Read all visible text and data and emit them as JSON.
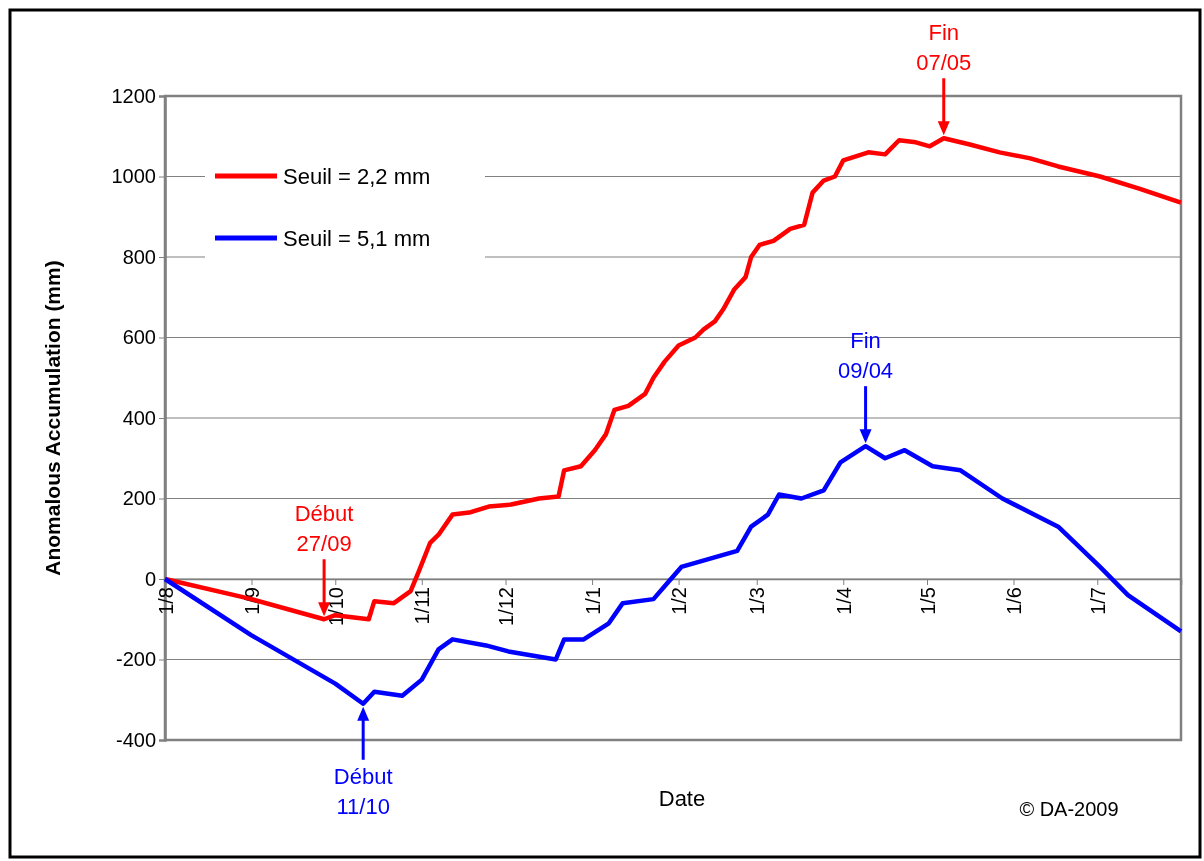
{
  "chart_data": {
    "type": "line",
    "xlabel": "Date",
    "ylabel": "Anomalous Accumulation (mm)",
    "xlim": [
      "2008-08-01",
      "2009-07-31"
    ],
    "xticks": [
      {
        "value": "2008-08-01",
        "label": "1/8"
      },
      {
        "value": "2008-09-01",
        "label": "1/9"
      },
      {
        "value": "2008-10-01",
        "label": "1/10"
      },
      {
        "value": "2008-11-01",
        "label": "1/11"
      },
      {
        "value": "2008-12-01",
        "label": "1/12"
      },
      {
        "value": "2009-01-01",
        "label": "1/1"
      },
      {
        "value": "2009-02-01",
        "label": "1/2"
      },
      {
        "value": "2009-03-01",
        "label": "1/3"
      },
      {
        "value": "2009-04-01",
        "label": "1/4"
      },
      {
        "value": "2009-05-01",
        "label": "1/5"
      },
      {
        "value": "2009-06-01",
        "label": "1/6"
      },
      {
        "value": "2009-07-01",
        "label": "1/7"
      }
    ],
    "ylim": [
      -400,
      1200
    ],
    "yticks": [
      -400,
      -200,
      0,
      200,
      400,
      600,
      800,
      1000,
      1200
    ],
    "grid": "y",
    "legend": "top left",
    "line_style": "solid",
    "marker": "none",
    "series": [
      {
        "name": "Seuil = 2,2 mm",
        "color": "#ff0000",
        "x": [
          "2008-08-01",
          "2008-09-01",
          "2008-09-27",
          "2008-10-01",
          "2008-10-13",
          "2008-10-15",
          "2008-10-22",
          "2008-10-28",
          "2008-10-31",
          "2008-11-04",
          "2008-11-07",
          "2008-11-12",
          "2008-11-18",
          "2008-11-25",
          "2008-12-03",
          "2008-12-13",
          "2008-12-20",
          "2008-12-22",
          "2008-12-28",
          "2009-01-02",
          "2009-01-06",
          "2009-01-09",
          "2009-01-14",
          "2009-01-20",
          "2009-01-23",
          "2009-01-27",
          "2009-02-01",
          "2009-02-07",
          "2009-02-10",
          "2009-02-14",
          "2009-02-17",
          "2009-02-21",
          "2009-02-25",
          "2009-02-27",
          "2009-03-02",
          "2009-03-07",
          "2009-03-13",
          "2009-03-18",
          "2009-03-21",
          "2009-03-25",
          "2009-03-29",
          "2009-04-01",
          "2009-04-10",
          "2009-04-16",
          "2009-04-21",
          "2009-04-27",
          "2009-05-02",
          "2009-05-07",
          "2009-05-16",
          "2009-05-27",
          "2009-06-07",
          "2009-06-17",
          "2009-07-02",
          "2009-07-16",
          "2009-07-31"
        ],
        "values": [
          0,
          -50,
          -100,
          -90,
          -100,
          -55,
          -60,
          -30,
          20,
          90,
          110,
          160,
          165,
          180,
          185,
          200,
          205,
          270,
          280,
          320,
          360,
          420,
          430,
          460,
          500,
          540,
          580,
          600,
          620,
          640,
          670,
          720,
          750,
          800,
          830,
          840,
          870,
          880,
          960,
          990,
          1000,
          1040,
          1060,
          1055,
          1090,
          1085,
          1075,
          1095,
          1080,
          1060,
          1045,
          1025,
          1000,
          970,
          935
        ]
      },
      {
        "name": "Seuil = 5,1 mm",
        "color": "#0000ff",
        "x": [
          "2008-08-01",
          "2008-09-01",
          "2008-10-01",
          "2008-10-11",
          "2008-10-15",
          "2008-10-25",
          "2008-11-01",
          "2008-11-07",
          "2008-11-12",
          "2008-11-24",
          "2008-12-02",
          "2008-12-19",
          "2008-12-22",
          "2008-12-29",
          "2009-01-07",
          "2009-01-12",
          "2009-01-23",
          "2009-01-28",
          "2009-02-02",
          "2009-02-12",
          "2009-02-22",
          "2009-02-27",
          "2009-03-05",
          "2009-03-09",
          "2009-03-17",
          "2009-03-25",
          "2009-03-31",
          "2009-04-09",
          "2009-04-16",
          "2009-04-23",
          "2009-05-03",
          "2009-05-13",
          "2009-05-28",
          "2009-06-17",
          "2009-07-02",
          "2009-07-12",
          "2009-07-31"
        ],
        "values": [
          0,
          -140,
          -260,
          -310,
          -280,
          -290,
          -250,
          -175,
          -150,
          -165,
          -180,
          -200,
          -150,
          -150,
          -110,
          -60,
          -50,
          -10,
          30,
          50,
          70,
          130,
          160,
          210,
          200,
          220,
          290,
          330,
          300,
          320,
          280,
          270,
          200,
          130,
          30,
          -40,
          -130
        ]
      }
    ],
    "annotations": [
      {
        "text": "Début\n27/09",
        "x": "2008-09-27",
        "y": -100
      },
      {
        "text": "Fin\n07/05",
        "x": "2009-05-07",
        "y": 1095
      },
      {
        "text": "Fin\n09/04",
        "x": "2009-04-09",
        "y": 330
      },
      {
        "text": "Début\n11/10",
        "x": "2008-10-11",
        "y": -310
      },
      "© DA-2009"
    ]
  }
}
